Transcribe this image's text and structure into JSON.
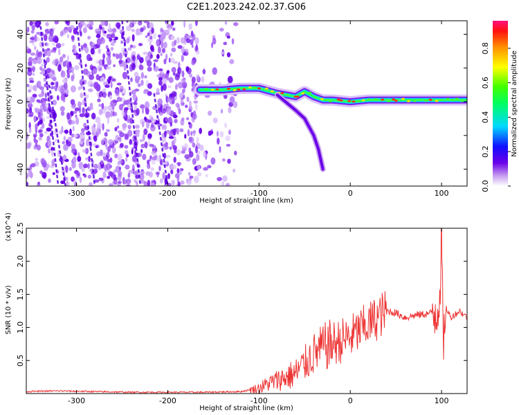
{
  "title": "C2E1.2023.242.02.37.G06",
  "chart_data": [
    {
      "type": "heatmap",
      "xlabel": "Height of straight line (km)",
      "ylabel": "Frequency (Hz)",
      "xlim": [
        -355,
        128
      ],
      "ylim": [
        -50,
        48
      ],
      "xticks": [
        -300,
        -200,
        -100,
        0,
        100
      ],
      "yticks": [
        -40,
        -20,
        0,
        20,
        40
      ],
      "colorbar": {
        "label": "Normalized spectral amplitude",
        "range": [
          0,
          0.96
        ],
        "ticks": [
          0.0,
          0.2,
          0.4,
          0.6,
          0.8
        ],
        "colormap": "rainbow"
      },
      "features": {
        "noise_region_x": [
          -355,
          -165
        ],
        "main_trace": {
          "x": [
            -165,
            -140,
            -120,
            -100,
            -80,
            -60,
            -50,
            -40,
            -30,
            -20,
            0,
            20,
            50,
            80,
            100,
            128
          ],
          "y": [
            7,
            7,
            8,
            8,
            5,
            3,
            6,
            3,
            1,
            1,
            0,
            1,
            1,
            1,
            1,
            1
          ]
        },
        "branch_trace": {
          "x": [
            -80,
            -60,
            -50,
            -45,
            -40,
            -35,
            -30
          ],
          "y": [
            4,
            -5,
            -10,
            -15,
            -20,
            -28,
            -40
          ]
        }
      }
    },
    {
      "type": "line",
      "xlabel": "Height of straight line (km)",
      "ylabel": "SNR (10 * v/v)",
      "yscale_label": "(x10^4)",
      "xlim": [
        -355,
        128
      ],
      "ylim": [
        0,
        2.5
      ],
      "xticks": [
        -300,
        -200,
        -100,
        0,
        100
      ],
      "yticks": [
        0.5,
        1.0,
        1.5,
        2.0,
        2.5
      ],
      "color": "#ee3333",
      "series": [
        {
          "x": [
            -355,
            -320,
            -280,
            -240,
            -200,
            -160,
            -120,
            -100,
            -90,
            -80,
            -70,
            -60,
            -50,
            -40,
            -30,
            -20,
            -10,
            0,
            10,
            20,
            30,
            40,
            50,
            60,
            70,
            80,
            90,
            95,
            98,
            100,
            102,
            105,
            110,
            115,
            120,
            128
          ],
          "y": [
            0.03,
            0.04,
            0.03,
            0.02,
            0.02,
            0.02,
            0.03,
            0.08,
            0.15,
            0.2,
            0.25,
            0.3,
            0.45,
            0.6,
            0.7,
            0.75,
            0.8,
            0.85,
            0.95,
            1.05,
            1.15,
            1.25,
            1.22,
            1.15,
            1.18,
            1.2,
            1.22,
            1.3,
            1.5,
            2.5,
            0.5,
            1.3,
            1.15,
            1.2,
            1.25,
            1.15
          ]
        }
      ]
    }
  ]
}
